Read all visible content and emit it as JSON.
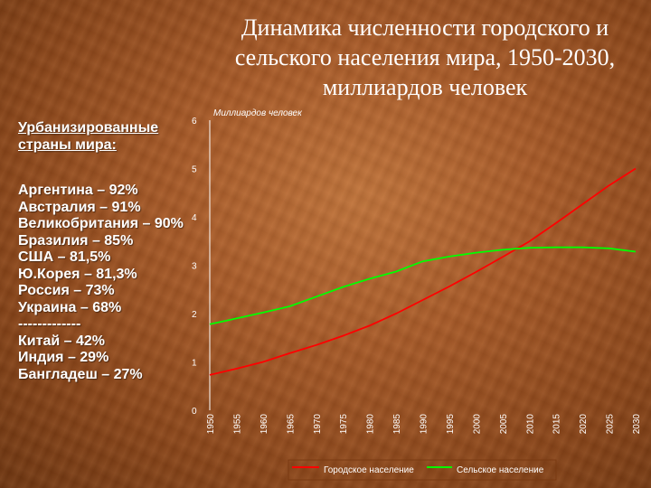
{
  "slide": {
    "title": "Динамика численности городского и\nсельского населения мира, 1950-2030,\nмиллиардов человек",
    "sidebar": {
      "heading": "Урбанизированные страны мира:",
      "items": [
        "Аргентина – 92%",
        "Австралия – 91%",
        "Великобритания – 90%",
        "Бразилия – 85%",
        "США – 81,5%",
        "Ю.Корея – 81,3%",
        "Россия – 73%",
        "Украина – 68%",
        "-------------",
        "Китай – 42%",
        "Индия – 29%",
        "Бангладеш – 27%"
      ]
    }
  },
  "colors": {
    "urban": "#ff0000",
    "rural": "#00ff00"
  },
  "chart_data": {
    "type": "line",
    "ylabel": "Миллиардов человек",
    "ylim": [
      0,
      6
    ],
    "yticks": [
      "0",
      "1",
      "2",
      "3",
      "4",
      "5",
      "6"
    ],
    "x": [
      1950,
      1955,
      1960,
      1965,
      1970,
      1975,
      1980,
      1985,
      1990,
      1995,
      2000,
      2005,
      2010,
      2015,
      2020,
      2025,
      2030
    ],
    "xticks": [
      "1950",
      "1955",
      "1960",
      "1965",
      "1970",
      "1975",
      "1980",
      "1985",
      "1990",
      "1995",
      "2000",
      "2005",
      "2010",
      "2015",
      "2020",
      "2025",
      "2030"
    ],
    "series": [
      {
        "name": "Городское население",
        "values": [
          0.73,
          0.86,
          1.0,
          1.18,
          1.35,
          1.54,
          1.75,
          2.0,
          2.28,
          2.56,
          2.86,
          3.17,
          3.49,
          3.87,
          4.26,
          4.65,
          5.0
        ]
      },
      {
        "name": "Сельское население",
        "values": [
          1.78,
          1.9,
          2.02,
          2.15,
          2.35,
          2.55,
          2.72,
          2.87,
          3.08,
          3.18,
          3.26,
          3.32,
          3.36,
          3.37,
          3.37,
          3.35,
          3.28
        ]
      }
    ],
    "legend_position": "bottom",
    "grid": false
  }
}
